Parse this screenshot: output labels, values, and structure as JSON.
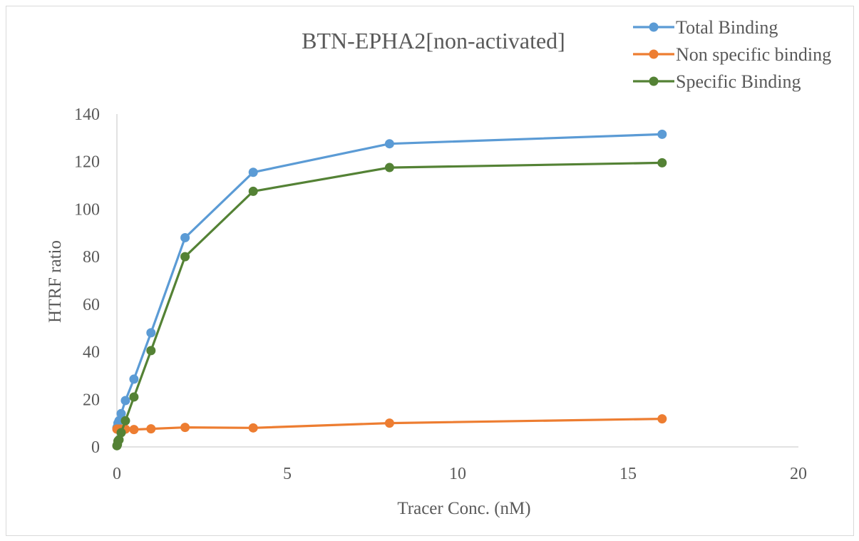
{
  "chart_data": {
    "type": "scatter",
    "title": "BTN-EPHA2[non-activated]",
    "xlabel": "Tracer Conc. (nM)",
    "ylabel": "HTRF ratio",
    "xlim": [
      0,
      20
    ],
    "ylim": [
      0,
      140
    ],
    "x_ticks": [
      "0",
      "5",
      "10",
      "15",
      "20"
    ],
    "y_ticks": [
      "0",
      "20",
      "40",
      "60",
      "80",
      "100",
      "120",
      "140"
    ],
    "grid": false,
    "legend_position": "top-right",
    "lines_with_markers": true,
    "series": [
      {
        "name": "Total Binding",
        "color": "#5b9bd5",
        "x": [
          0,
          0.0156,
          0.03125,
          0.0625,
          0.125,
          0.25,
          0.5,
          1,
          2,
          4,
          8,
          16
        ],
        "y": [
          8,
          8.5,
          10,
          11,
          14,
          19.5,
          28.5,
          48,
          88,
          115.5,
          127.5,
          131.5
        ]
      },
      {
        "name": "Non specific binding",
        "color": "#ed7d31",
        "x": [
          0,
          0.0156,
          0.03125,
          0.0625,
          0.125,
          0.25,
          0.5,
          1,
          2,
          4,
          8,
          16
        ],
        "y": [
          7.5,
          7.5,
          7.5,
          7.5,
          7.5,
          7.5,
          7.3,
          7.6,
          8.2,
          8,
          10,
          11.8
        ]
      },
      {
        "name": "Specific Binding",
        "color": "#548235",
        "x": [
          0,
          0.0156,
          0.03125,
          0.0625,
          0.125,
          0.25,
          0.5,
          1,
          2,
          4,
          8,
          16
        ],
        "y": [
          0.5,
          1,
          2.5,
          3,
          6,
          11,
          21,
          40.5,
          80,
          107.5,
          117.5,
          119.5
        ]
      }
    ]
  }
}
